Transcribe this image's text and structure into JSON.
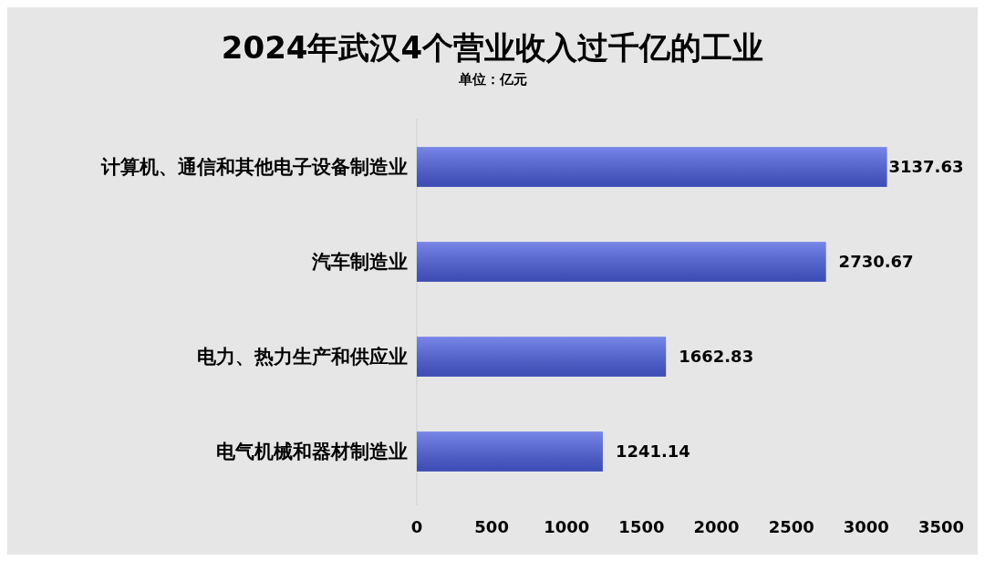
{
  "chart_data": {
    "type": "bar",
    "orientation": "horizontal",
    "title": "2024年武汉4个营业收入过千亿的工业",
    "subtitle": "单位：亿元",
    "categories": [
      "计算机、通信和其他电子设备制造业",
      "汽车制造业",
      "电力、热力生产和供应业",
      "电气机械和器材制造业"
    ],
    "values": [
      3137.63,
      2730.67,
      1662.83,
      1241.14
    ],
    "color": "#4a5ee0",
    "xlim": [
      0,
      3500
    ],
    "xticks": [
      0,
      500,
      1000,
      1500,
      2000,
      2500,
      3000,
      3500
    ],
    "data_labels": true
  }
}
